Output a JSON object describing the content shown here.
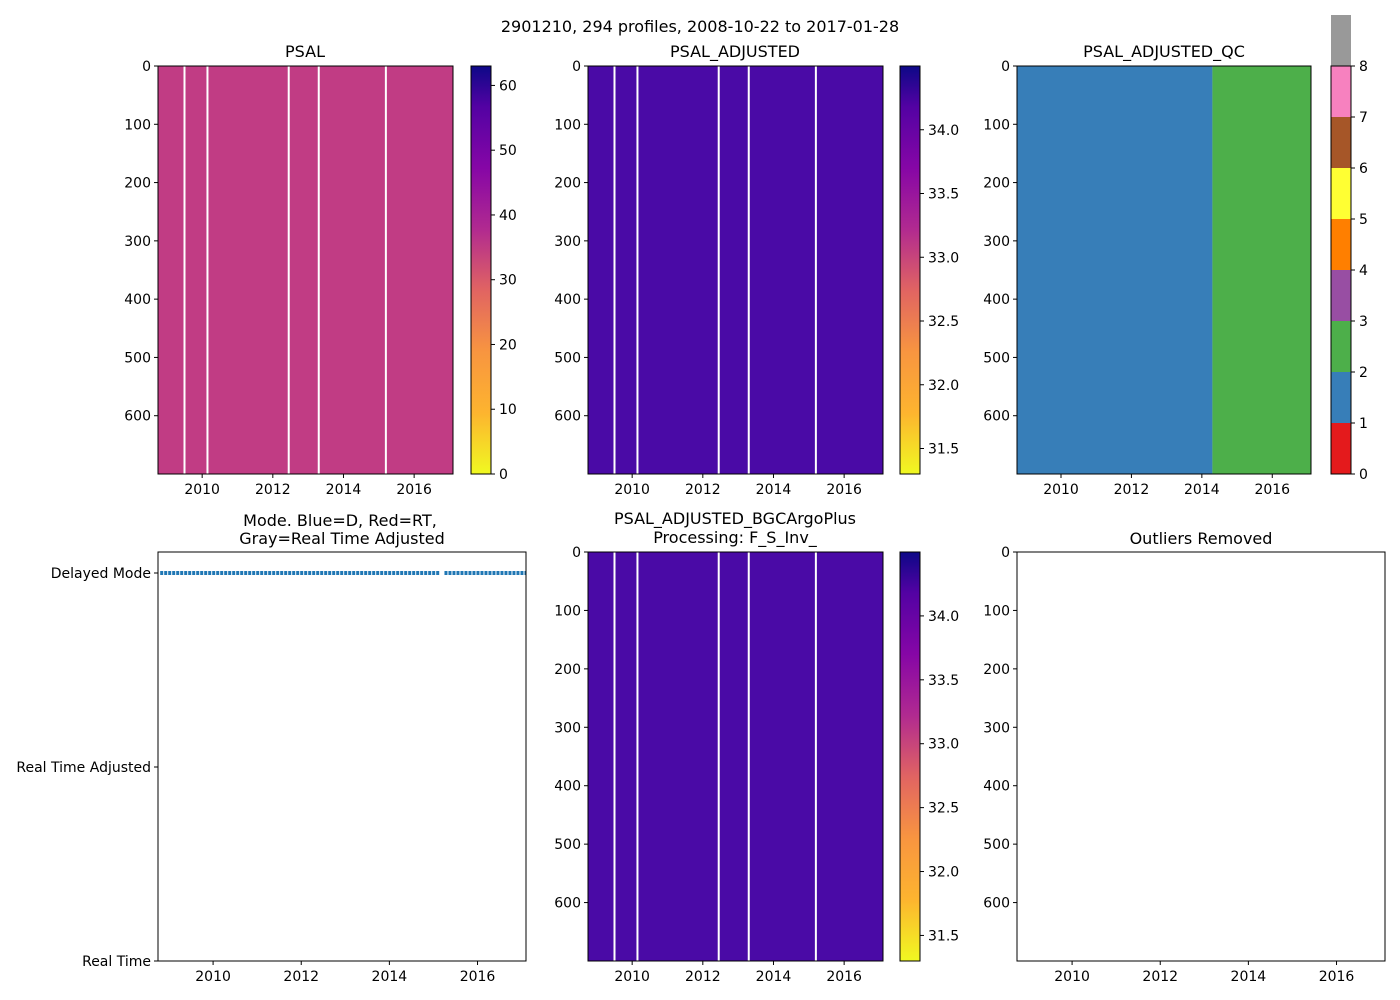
{
  "figure": {
    "suptitle": "2901210, 294 profiles, 2008-10-22 to 2017-01-28"
  },
  "chart_data": [
    {
      "id": "psal",
      "type": "heatmap",
      "title": "PSAL",
      "x_range": [
        2008.75,
        2017.1
      ],
      "x_ticks": [
        2010,
        2012,
        2014,
        2016
      ],
      "x_tick_labels": [
        "2010",
        "2012",
        "2014",
        "2016"
      ],
      "y_range": [
        0,
        700
      ],
      "y_inverted": true,
      "y_ticks": [
        0,
        100,
        200,
        300,
        400,
        500,
        600
      ],
      "y_tick_labels": [
        "0",
        "100",
        "200",
        "300",
        "400",
        "500",
        "600"
      ],
      "colormap": "plasma_r",
      "fill_color": "#c13c84",
      "colorbar": {
        "range": [
          0,
          63
        ],
        "ticks": [
          0,
          10,
          20,
          30,
          40,
          50,
          60
        ],
        "tick_labels": [
          "0",
          "10",
          "20",
          "30",
          "40",
          "50",
          "60"
        ]
      },
      "gaps": [
        2009.5,
        2010.15,
        2012.45,
        2013.3,
        2015.2
      ]
    },
    {
      "id": "psal_adjusted",
      "type": "heatmap",
      "title": "PSAL_ADJUSTED",
      "x_range": [
        2008.75,
        2017.1
      ],
      "x_ticks": [
        2010,
        2012,
        2014,
        2016
      ],
      "x_tick_labels": [
        "2010",
        "2012",
        "2014",
        "2016"
      ],
      "y_range": [
        0,
        700
      ],
      "y_inverted": true,
      "y_ticks": [
        0,
        100,
        200,
        300,
        400,
        500,
        600
      ],
      "y_tick_labels": [
        "0",
        "100",
        "200",
        "300",
        "400",
        "500",
        "600"
      ],
      "colormap": "plasma_r",
      "fill_color": "#4a0aa6",
      "colorbar": {
        "range": [
          31.3,
          34.5
        ],
        "ticks": [
          31.5,
          32.0,
          32.5,
          33.0,
          33.5,
          34.0
        ],
        "tick_labels": [
          "31.5",
          "32.0",
          "32.5",
          "33.0",
          "33.5",
          "34.0"
        ]
      },
      "gaps": [
        2009.5,
        2010.15,
        2012.45,
        2013.3,
        2015.2
      ]
    },
    {
      "id": "psal_adjusted_qc",
      "type": "heatmap",
      "title": "PSAL_ADJUSTED_QC",
      "x_range": [
        2008.75,
        2017.1
      ],
      "x_ticks": [
        2010,
        2012,
        2014,
        2016
      ],
      "x_tick_labels": [
        "2010",
        "2012",
        "2014",
        "2016"
      ],
      "y_range": [
        0,
        700
      ],
      "y_inverted": true,
      "y_ticks": [
        0,
        100,
        200,
        300,
        400,
        500,
        600
      ],
      "y_tick_labels": [
        "0",
        "100",
        "200",
        "300",
        "400",
        "500",
        "600"
      ],
      "qc_regions": [
        {
          "from": 2008.75,
          "to": 2014.3,
          "flag": 1,
          "color": "#377eb8"
        },
        {
          "from": 2014.3,
          "to": 2017.1,
          "flag": 2,
          "color": "#4daf4a"
        }
      ],
      "colorbar": {
        "range": [
          0,
          8
        ],
        "ticks": [
          0,
          1,
          2,
          3,
          4,
          5,
          6,
          7,
          8
        ],
        "tick_labels": [
          "0",
          "1",
          "2",
          "3",
          "4",
          "5",
          "6",
          "7",
          "8"
        ],
        "colors": [
          "#e41a1c",
          "#377eb8",
          "#4daf4a",
          "#984ea3",
          "#ff7f00",
          "#ffff33",
          "#a65628",
          "#f781bf",
          "#999999"
        ]
      }
    },
    {
      "id": "mode",
      "type": "scatter",
      "title_line1": "Mode. Blue=D, Red=RT,",
      "title_line2": "Gray=Real Time Adjusted",
      "x_range": [
        2008.75,
        2017.1
      ],
      "x_ticks": [
        2010,
        2012,
        2014,
        2016
      ],
      "x_tick_labels": [
        "2010",
        "2012",
        "2014",
        "2016"
      ],
      "categories": [
        "Real Time",
        "Real Time Adjusted",
        "Delayed Mode"
      ],
      "y_range": [
        0,
        2
      ],
      "series": [
        {
          "name": "Delayed Mode",
          "color": "#1f77b4",
          "y": 2,
          "x_segments": [
            [
              2008.8,
              2015.15
            ],
            [
              2015.25,
              2017.1
            ]
          ]
        }
      ]
    },
    {
      "id": "psal_adjusted_bgc",
      "type": "heatmap",
      "title_line1": "PSAL_ADJUSTED_BGCArgoPlus",
      "title_line2": "Processing: F_S_Inv_",
      "x_range": [
        2008.75,
        2017.1
      ],
      "x_ticks": [
        2010,
        2012,
        2014,
        2016
      ],
      "x_tick_labels": [
        "2010",
        "2012",
        "2014",
        "2016"
      ],
      "y_range": [
        0,
        700
      ],
      "y_inverted": true,
      "y_ticks": [
        0,
        100,
        200,
        300,
        400,
        500,
        600
      ],
      "y_tick_labels": [
        "0",
        "100",
        "200",
        "300",
        "400",
        "500",
        "600"
      ],
      "colormap": "plasma_r",
      "fill_color": "#4a0aa6",
      "colorbar": {
        "range": [
          31.3,
          34.5
        ],
        "ticks": [
          31.5,
          32.0,
          32.5,
          33.0,
          33.5,
          34.0
        ],
        "tick_labels": [
          "31.5",
          "32.0",
          "32.5",
          "33.0",
          "33.5",
          "34.0"
        ]
      },
      "gaps": [
        2009.5,
        2010.15,
        2012.45,
        2013.3,
        2015.2
      ]
    },
    {
      "id": "outliers",
      "type": "scatter",
      "title": "Outliers Removed",
      "x_range": [
        2008.75,
        2017.1
      ],
      "x_ticks": [
        2010,
        2012,
        2014,
        2016
      ],
      "x_tick_labels": [
        "2010",
        "2012",
        "2014",
        "2016"
      ],
      "y_range": [
        0,
        700
      ],
      "y_inverted": true,
      "y_ticks": [
        0,
        100,
        200,
        300,
        400,
        500,
        600
      ],
      "y_tick_labels": [
        "0",
        "100",
        "200",
        "300",
        "400",
        "500",
        "600"
      ],
      "series": []
    }
  ]
}
